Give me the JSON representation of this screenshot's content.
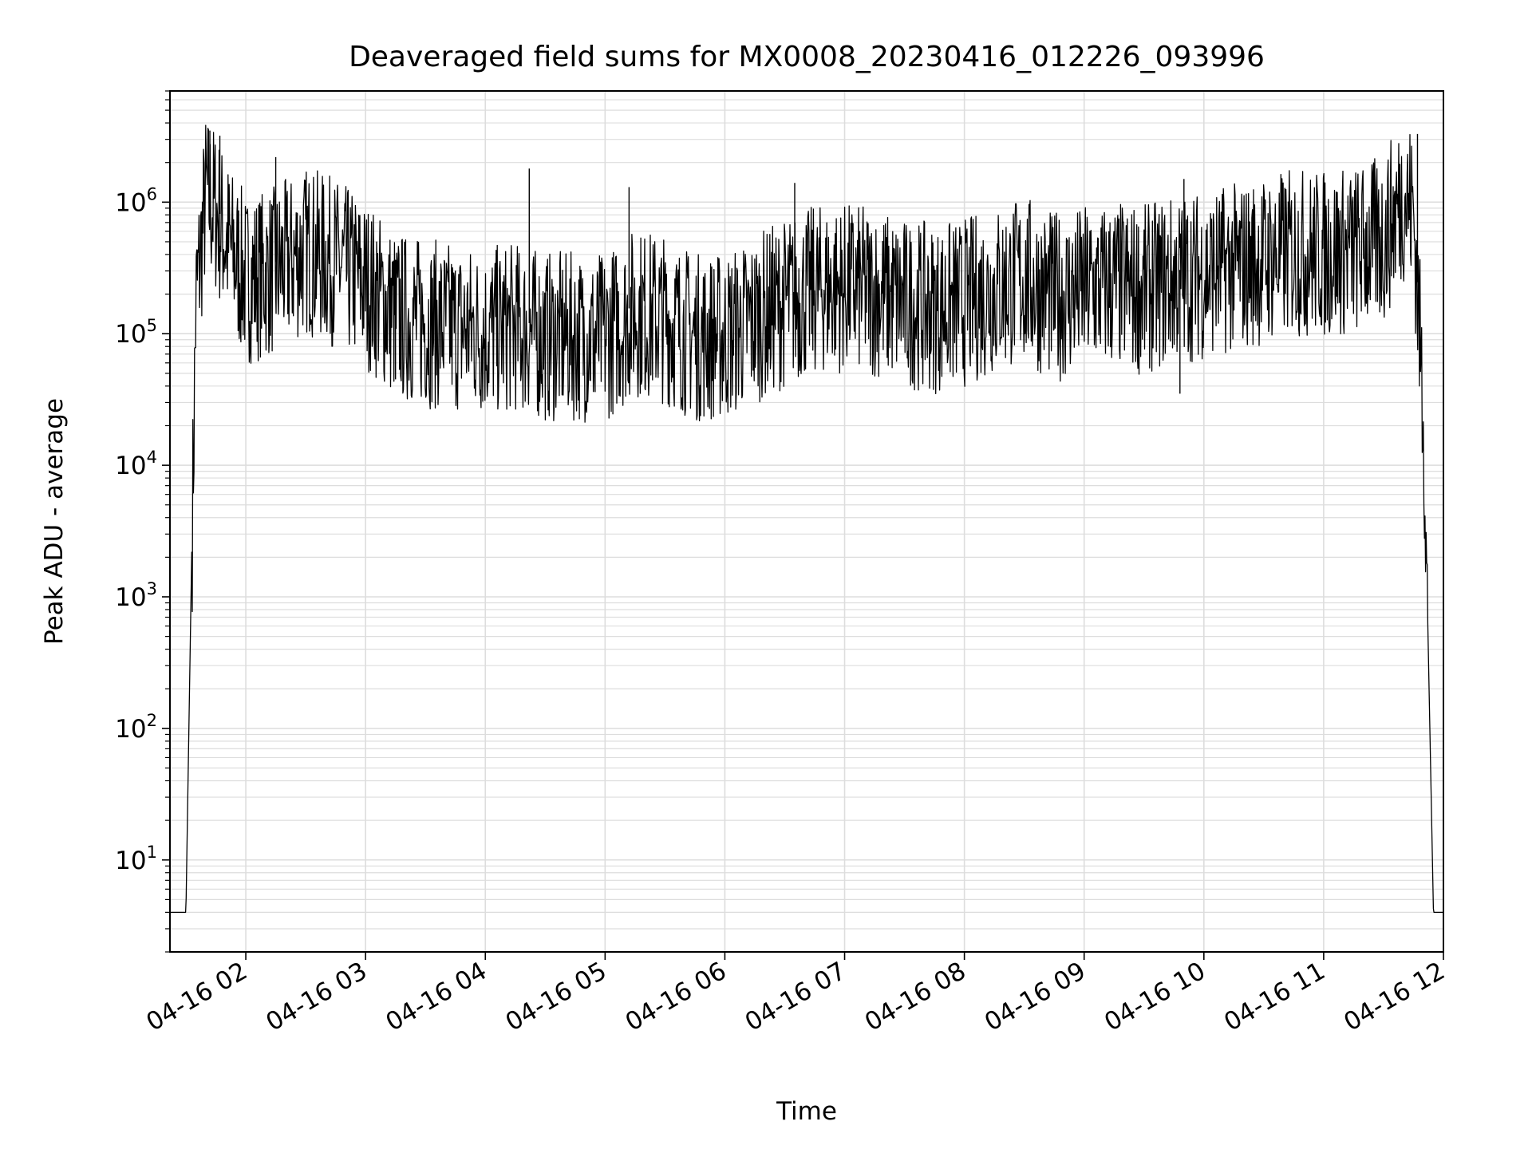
{
  "chart_data": {
    "type": "line",
    "title": "Deaveraged field sums for MX0008_20230416_012226_093996",
    "xlabel": "Time",
    "ylabel": "Peak ADU - average",
    "yscale": "log",
    "ylim": [
      2,
      7000000.0
    ],
    "xlim": [
      "2023-04-16 01:22",
      "2023-04-16 12:00"
    ],
    "grid": true,
    "x_ticks": [
      "04-16 02",
      "04-16 03",
      "04-16 04",
      "04-16 05",
      "04-16 06",
      "04-16 07",
      "04-16 08",
      "04-16 09",
      "04-16 10",
      "04-16 11",
      "04-16 12"
    ],
    "y_ticks": [
      {
        "base": "10",
        "exp": "1",
        "value": 10
      },
      {
        "base": "10",
        "exp": "2",
        "value": 100
      },
      {
        "base": "10",
        "exp": "3",
        "value": 1000
      },
      {
        "base": "10",
        "exp": "4",
        "value": 10000
      },
      {
        "base": "10",
        "exp": "5",
        "value": 100000
      },
      {
        "base": "10",
        "exp": "6",
        "value": 1000000
      }
    ],
    "series": [
      {
        "color": "#000000",
        "x": [
          "01:22",
          "01:30",
          "01:35",
          "01:40",
          "01:45",
          "01:50",
          "02:00",
          "02:15",
          "02:30",
          "02:45",
          "03:00",
          "03:15",
          "03:30",
          "03:45",
          "04:00",
          "04:15",
          "04:30",
          "04:45",
          "05:00",
          "05:15",
          "05:30",
          "05:45",
          "06:00",
          "06:15",
          "06:30",
          "06:45",
          "07:00",
          "07:15",
          "07:30",
          "07:45",
          "08:00",
          "08:15",
          "08:30",
          "08:45",
          "09:00",
          "09:15",
          "09:30",
          "09:45",
          "10:00",
          "10:15",
          "10:30",
          "10:45",
          "11:00",
          "11:15",
          "11:30",
          "11:40",
          "11:45",
          "11:50",
          "11:55",
          "12:00"
        ],
        "y": [
          4,
          4,
          200000,
          1300000,
          1000000,
          600000,
          300000,
          350000,
          500000,
          400000,
          280000,
          160000,
          140000,
          130000,
          120000,
          130000,
          110000,
          110000,
          110000,
          170000,
          150000,
          110000,
          110000,
          150000,
          200000,
          250000,
          260000,
          240000,
          200000,
          180000,
          200000,
          250000,
          300000,
          220000,
          250000,
          270000,
          250000,
          300000,
          330000,
          370000,
          420000,
          480000,
          470000,
          500000,
          600000,
          1300000,
          1000000,
          30000,
          4,
          4
        ],
        "spikes": [
          {
            "x": "01:42",
            "y": 3500000
          },
          {
            "x": "01:47",
            "y": 3200000
          },
          {
            "x": "02:15",
            "y": 2200000
          },
          {
            "x": "04:22",
            "y": 1800000
          },
          {
            "x": "05:12",
            "y": 1300000
          },
          {
            "x": "06:35",
            "y": 1400000
          },
          {
            "x": "09:50",
            "y": 1500000
          },
          {
            "x": "11:47",
            "y": 3300000
          },
          {
            "x": "04:55",
            "y": 36000
          },
          {
            "x": "05:20",
            "y": 38000
          },
          {
            "x": "09:48",
            "y": 35000
          },
          {
            "x": "03:15",
            "y": 45000
          }
        ]
      }
    ]
  }
}
